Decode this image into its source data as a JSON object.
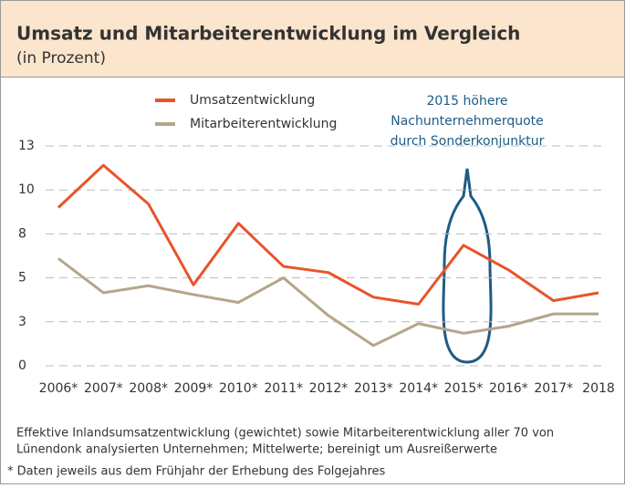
{
  "chart_data": {
    "type": "line",
    "title": "Umsatz und Mitarbeiterentwicklung im Vergleich",
    "subtitle": "(in Prozent)",
    "categories": [
      "2006*",
      "2007*",
      "2008*",
      "2009*",
      "2010*",
      "2011*",
      "2012*",
      "2013*",
      "2014*",
      "2015*",
      "2016*",
      "2017*",
      "2018"
    ],
    "series": [
      {
        "name": "Umsatzentwicklung",
        "color": "#e8542a",
        "values": [
          9.0,
          11.4,
          9.2,
          4.6,
          8.1,
          5.65,
          5.3,
          3.9,
          3.5,
          6.85,
          5.45,
          3.7,
          4.15
        ]
      },
      {
        "name": "Mitarbeiterentwicklung",
        "color": "#b5a58b",
        "values": [
          6.1,
          4.15,
          4.55,
          4.05,
          3.6,
          5.0,
          2.85,
          1.15,
          2.4,
          1.85,
          2.25,
          2.95,
          2.95
        ]
      }
    ],
    "ylim": [
      0,
      12.5
    ],
    "yticks": [
      0,
      {
        "value": 2.5,
        "label": "3"
      },
      5,
      {
        "value": 7.5,
        "label": "8"
      },
      10,
      {
        "value": 12.5,
        "label": "13"
      }
    ],
    "grid": true,
    "annotation": [
      "2015 höhere",
      "Nachunternehmerquote",
      "durch Sonderkonjunktur"
    ],
    "notes": [
      "Effektive Inlandsumsatzentwicklung (gewichtet) sowie Mitarbeiterentwicklung aller 70 von",
      "Lünendonk analysierten Unternehmen; Mittelwerte; bereinigt um Ausreißerwerte",
      "* Daten jeweils aus dem Frühjahr der Erhebung des Folgejahres"
    ]
  }
}
